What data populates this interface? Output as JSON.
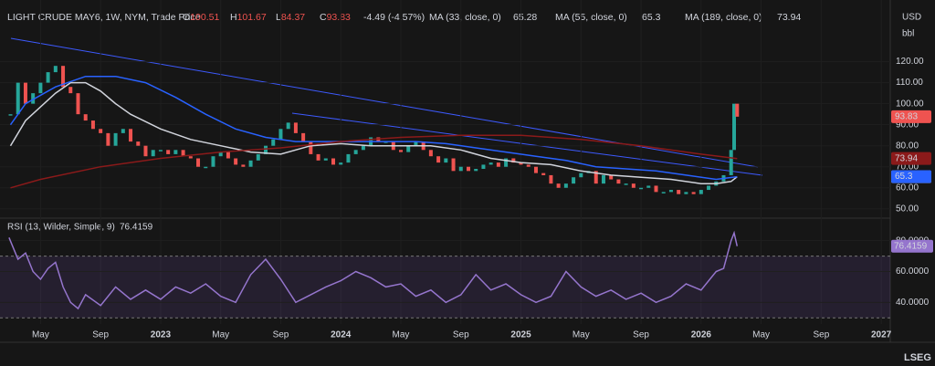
{
  "header": {
    "title": "LIGHT CRUDE MAY6, 1W, NYM, Trade Price",
    "ohlc": [
      {
        "label": "O",
        "value": 100.51
      },
      {
        "label": "H",
        "value": 101.67
      },
      {
        "label": "L",
        "value": 84.37
      },
      {
        "label": "C",
        "value": 93.83
      }
    ],
    "change": "-4.49 (-4.57%)",
    "currency": "USD",
    "unit": "bbl",
    "brand": "LSEG"
  },
  "chart_data": [
    {
      "type": "candlestick",
      "xlim": [
        1.3,
        60.6
      ],
      "ylim": [
        46,
        145
      ],
      "yticks": [
        {
          "value": 50,
          "label": "50.00"
        },
        {
          "value": 60,
          "label": "60.00"
        },
        {
          "value": 70,
          "label": "70.00"
        },
        {
          "value": 80,
          "label": "80.00"
        },
        {
          "value": 90,
          "label": "90.00"
        },
        {
          "value": 100,
          "label": "100.00"
        },
        {
          "value": 110,
          "label": "110.00"
        },
        {
          "value": 120,
          "label": "120.00"
        }
      ],
      "xticks": [
        {
          "value": 4,
          "label": "May"
        },
        {
          "value": 8,
          "label": "Sep"
        },
        {
          "value": 12,
          "label": "2023"
        },
        {
          "value": 16,
          "label": "May"
        },
        {
          "value": 20,
          "label": "Sep"
        },
        {
          "value": 24,
          "label": "2024"
        },
        {
          "value": 28,
          "label": "May"
        },
        {
          "value": 32,
          "label": "Sep"
        },
        {
          "value": 36,
          "label": "2025"
        },
        {
          "value": 40,
          "label": "May"
        },
        {
          "value": 44,
          "label": "Sep"
        },
        {
          "value": 48,
          "label": "2026"
        },
        {
          "value": 52,
          "label": "May"
        },
        {
          "value": 56,
          "label": "Sep"
        },
        {
          "value": 60,
          "label": "2027"
        }
      ],
      "up_color": "#26a69a",
      "down_color": "#ef5350",
      "series": [
        {
          "name": "Close",
          "color": "#ef5350",
          "x": [
            2,
            2.5,
            3,
            3.5,
            4,
            4.5,
            5,
            5.5,
            6,
            6.5,
            7,
            7.5,
            8,
            8.5,
            9,
            9.5,
            10,
            10.5,
            11,
            11.5,
            12,
            12.5,
            13,
            13.5,
            14,
            14.5,
            15,
            15.5,
            16,
            16.5,
            17,
            17.5,
            18,
            18.5,
            19,
            19.5,
            20,
            20.5,
            21,
            21.5,
            22,
            22.5,
            23,
            23.5,
            24,
            24.5,
            25,
            25.5,
            26,
            26.5,
            27,
            27.5,
            28,
            28.5,
            29,
            29.5,
            30,
            30.5,
            31,
            31.5,
            32,
            32.5,
            33,
            33.5,
            34,
            34.5,
            35,
            35.5,
            36,
            36.5,
            37,
            37.5,
            38,
            38.5,
            39,
            39.5,
            40,
            40.5,
            41,
            41.5,
            42,
            42.5,
            43,
            43.5,
            44,
            44.5,
            45,
            45.5,
            46,
            46.5,
            47,
            47.5,
            48,
            48.5,
            49,
            49.5,
            50,
            50.2,
            50.4
          ],
          "values": [
            95,
            110,
            100,
            105,
            110,
            115,
            118,
            108,
            105,
            95,
            92,
            88,
            86,
            80,
            86,
            88,
            82,
            80,
            75,
            78,
            78,
            76,
            78,
            75,
            74,
            70,
            70,
            75,
            77,
            74,
            71,
            70,
            73,
            76,
            80,
            83,
            88,
            91,
            86,
            82,
            76,
            73,
            74,
            71,
            72,
            76,
            78,
            80,
            84,
            82,
            82,
            78,
            77,
            80,
            82,
            78,
            75,
            72,
            74,
            68,
            70,
            68,
            69,
            71,
            72,
            70,
            74,
            72,
            71,
            70,
            67,
            66,
            62,
            60,
            62,
            65,
            67,
            68,
            62,
            66,
            64,
            62,
            62,
            60,
            60,
            61,
            58,
            58,
            59,
            57,
            58,
            57,
            59,
            61,
            63,
            66,
            78,
            100,
            93.83
          ]
        },
        {
          "name": "MA (33, close, 0)",
          "color": "#d1d4dc",
          "x": [
            2,
            3,
            5,
            6,
            7,
            8,
            9,
            10,
            12,
            14,
            16,
            18,
            20,
            22,
            24,
            26,
            28,
            30,
            32,
            34,
            36,
            38,
            40,
            42,
            44,
            46,
            48,
            49,
            50,
            50.4
          ],
          "values": [
            80,
            92,
            105,
            110,
            110,
            106,
            100,
            95,
            88,
            83,
            80,
            77,
            76,
            80,
            81,
            80,
            80,
            80,
            78,
            74,
            72,
            71,
            68,
            66,
            65,
            64,
            62,
            62,
            63,
            65.28
          ]
        },
        {
          "name": "MA (55, close, 0)",
          "color": "#2962ff",
          "x": [
            2,
            3,
            5,
            7,
            9,
            11,
            13,
            15,
            17,
            19,
            21,
            23,
            25,
            27,
            29,
            31,
            33,
            35,
            37,
            39,
            41,
            43,
            45,
            47,
            49,
            50.4
          ],
          "values": [
            90,
            100,
            108,
            113,
            113,
            110,
            103,
            95,
            88,
            84,
            82,
            82,
            82,
            82,
            82,
            81,
            79,
            77,
            75,
            73,
            70,
            69,
            68,
            66,
            64,
            65.3
          ]
        },
        {
          "name": "MA (189, close, 0)",
          "color": "#8b1a1a",
          "x": [
            2,
            4,
            8,
            12,
            16,
            20,
            24,
            28,
            32,
            36,
            40,
            44,
            48,
            50.4
          ],
          "values": [
            60,
            64,
            70,
            74,
            77,
            79,
            82,
            84,
            85,
            85,
            83,
            80,
            76,
            73.94
          ]
        }
      ]
    },
    {
      "type": "line",
      "title": "RSI (13, Wilder, Simple, 9)",
      "xlim": [
        1.3,
        60.6
      ],
      "ylim": [
        26,
        94
      ],
      "yticks": [
        {
          "value": 40,
          "label": "40.0000"
        },
        {
          "value": 60,
          "label": "60.0000"
        },
        {
          "value": 80,
          "label": "80.0000"
        }
      ],
      "band": [
        30,
        70
      ],
      "band_color": "#7e57c2",
      "series": [
        {
          "name": "RSI",
          "color": "#9575cd",
          "x": [
            1.9,
            2.5,
            3,
            3.5,
            4,
            4.5,
            5,
            5.5,
            6,
            6.5,
            7,
            8,
            9,
            10,
            11,
            12,
            13,
            14,
            15,
            16,
            17,
            18,
            19,
            20,
            21,
            22,
            23,
            24,
            25,
            26,
            27,
            28,
            29,
            30,
            31,
            32,
            33,
            34,
            35,
            36,
            37,
            38,
            39,
            40,
            41,
            42,
            43,
            44,
            45,
            46,
            47,
            48,
            49,
            49.5,
            50,
            50.2,
            50.4
          ],
          "values": [
            82,
            68,
            72,
            60,
            55,
            62,
            66,
            50,
            40,
            36,
            45,
            38,
            50,
            42,
            48,
            42,
            50,
            46,
            52,
            44,
            40,
            58,
            68,
            55,
            40,
            45,
            50,
            54,
            60,
            56,
            50,
            52,
            44,
            48,
            40,
            45,
            58,
            48,
            52,
            45,
            40,
            44,
            60,
            50,
            44,
            48,
            42,
            46,
            40,
            44,
            52,
            48,
            60,
            62,
            80,
            85,
            76.4159
          ]
        }
      ]
    }
  ]
}
